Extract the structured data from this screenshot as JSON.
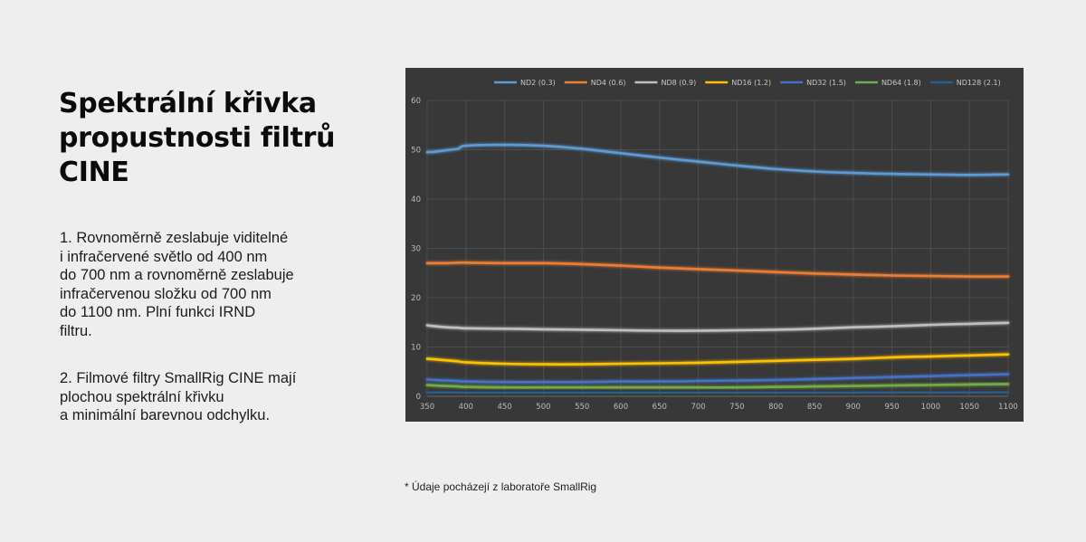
{
  "heading": "Spektrální křivka propustnosti filtrů CINE",
  "paragraph1": "1. Rovnoměrně zeslabuje viditelné\ni infračervené světlo od 400 nm\ndo 700 nm a rovnoměrně zeslabuje\ninfračervenou složku od 700 nm\ndo 1100 nm. Plní funkci IRND\nfiltru.",
  "paragraph2": "2. Filmové filtry SmallRig CINE mají\nplochou spektrální křivku\na minimální barevnou odchylku.",
  "footnote": "* Údaje pocházejí z laboratoře SmallRig",
  "chart_data": {
    "type": "line",
    "title": "",
    "xlabel": "",
    "ylabel": "",
    "xlim": [
      350,
      1100
    ],
    "ylim": [
      0,
      60
    ],
    "grid": true,
    "legend": "top",
    "x_ticks": [
      350,
      400,
      450,
      500,
      550,
      600,
      650,
      700,
      750,
      800,
      850,
      900,
      950,
      1000,
      1050,
      1100
    ],
    "y_ticks": [
      0,
      10,
      20,
      30,
      40,
      50,
      60
    ],
    "x": [
      350,
      360,
      375,
      390,
      400,
      450,
      500,
      550,
      600,
      650,
      700,
      750,
      800,
      850,
      900,
      950,
      1000,
      1050,
      1100
    ],
    "series": [
      {
        "name": "ND2 (0.3)",
        "color": "#5b9bd5",
        "values": [
          49.5,
          49.6,
          49.9,
          50.2,
          50.8,
          51.0,
          50.8,
          50.2,
          49.3,
          48.4,
          47.6,
          46.8,
          46.1,
          45.6,
          45.3,
          45.1,
          45.0,
          44.9,
          45.0
        ]
      },
      {
        "name": "ND4 (0.6)",
        "color": "#ed7d31",
        "values": [
          27.0,
          27.0,
          27.0,
          27.1,
          27.1,
          27.0,
          27.0,
          26.8,
          26.5,
          26.1,
          25.8,
          25.5,
          25.2,
          24.9,
          24.7,
          24.5,
          24.4,
          24.3,
          24.3
        ]
      },
      {
        "name": "ND8 (0.9)",
        "color": "#bfbfbf",
        "values": [
          14.4,
          14.2,
          14.0,
          13.9,
          13.8,
          13.7,
          13.6,
          13.5,
          13.4,
          13.3,
          13.3,
          13.4,
          13.5,
          13.7,
          14.0,
          14.2,
          14.5,
          14.7,
          14.9
        ]
      },
      {
        "name": "ND16 (1.2)",
        "color": "#ffc000",
        "values": [
          7.6,
          7.5,
          7.3,
          7.1,
          6.9,
          6.6,
          6.5,
          6.5,
          6.6,
          6.7,
          6.8,
          7.0,
          7.2,
          7.4,
          7.6,
          7.9,
          8.1,
          8.3,
          8.5
        ]
      },
      {
        "name": "ND32 (1.5)",
        "color": "#4472c4",
        "values": [
          3.4,
          3.3,
          3.2,
          3.1,
          3.0,
          2.9,
          2.9,
          2.9,
          3.0,
          3.0,
          3.1,
          3.2,
          3.3,
          3.5,
          3.7,
          3.9,
          4.1,
          4.3,
          4.5
        ]
      },
      {
        "name": "ND64 (1.8)",
        "color": "#70ad47",
        "values": [
          2.3,
          2.2,
          2.1,
          2.0,
          1.9,
          1.8,
          1.8,
          1.8,
          1.8,
          1.8,
          1.8,
          1.8,
          1.9,
          2.0,
          2.1,
          2.2,
          2.3,
          2.4,
          2.5
        ]
      },
      {
        "name": "ND128 (2.1)",
        "color": "#255e91",
        "values": [
          0.8,
          0.8,
          0.8,
          0.8,
          0.7,
          0.7,
          0.7,
          0.7,
          0.7,
          0.7,
          0.7,
          0.7,
          0.7,
          0.7,
          0.7,
          0.8,
          0.8,
          0.8,
          0.9
        ]
      }
    ]
  }
}
